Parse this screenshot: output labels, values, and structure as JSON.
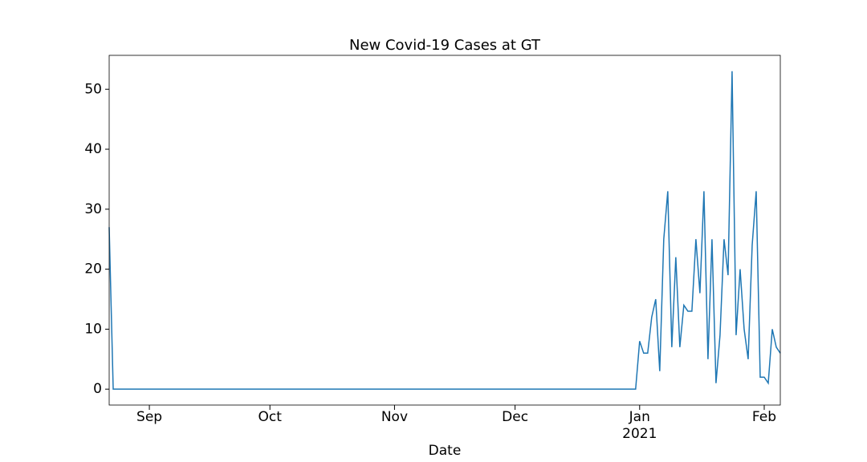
{
  "chart_data": {
    "type": "line",
    "title": "New Covid-19 Cases at GT",
    "xlabel": "Date",
    "year_label": "2021",
    "color": "#1f77b4",
    "x": [
      0,
      1,
      2,
      3,
      4,
      5,
      6,
      7,
      8,
      9,
      10,
      11,
      12,
      13,
      14,
      15,
      16,
      17,
      18,
      19,
      20,
      21,
      22,
      23,
      24,
      25,
      26,
      27,
      28,
      29,
      30,
      31,
      32,
      33,
      34,
      35,
      36,
      37,
      38,
      39,
      40,
      41,
      42,
      43,
      44,
      45,
      46,
      47,
      48,
      49,
      50,
      51,
      52,
      53,
      54,
      55,
      56,
      57,
      58,
      59,
      60,
      61,
      62,
      63,
      64,
      65,
      66,
      67,
      68,
      69,
      70,
      71,
      72,
      73,
      74,
      75,
      76,
      77,
      78,
      79,
      80,
      81,
      82,
      83,
      84,
      85,
      86,
      87,
      88,
      89,
      90,
      91,
      92,
      93,
      94,
      95,
      96,
      97,
      98,
      99,
      100,
      101,
      102,
      103,
      104,
      105,
      106,
      107,
      108,
      109,
      110,
      111,
      112,
      113,
      114,
      115,
      116,
      117,
      118,
      119,
      120,
      121,
      122,
      123,
      124,
      125,
      126,
      127,
      128,
      129,
      130,
      131,
      132,
      133,
      134,
      135,
      136,
      137,
      138,
      139,
      140,
      141,
      142,
      143,
      144,
      145,
      146,
      147,
      148,
      149,
      150,
      151,
      152,
      153,
      154,
      155,
      156,
      157,
      158,
      159,
      160,
      161,
      162,
      163,
      164,
      165,
      166,
      167
    ],
    "values": [
      27,
      0,
      0,
      0,
      0,
      0,
      0,
      0,
      0,
      0,
      0,
      0,
      0,
      0,
      0,
      0,
      0,
      0,
      0,
      0,
      0,
      0,
      0,
      0,
      0,
      0,
      0,
      0,
      0,
      0,
      0,
      0,
      0,
      0,
      0,
      0,
      0,
      0,
      0,
      0,
      0,
      0,
      0,
      0,
      0,
      0,
      0,
      0,
      0,
      0,
      0,
      0,
      0,
      0,
      0,
      0,
      0,
      0,
      0,
      0,
      0,
      0,
      0,
      0,
      0,
      0,
      0,
      0,
      0,
      0,
      0,
      0,
      0,
      0,
      0,
      0,
      0,
      0,
      0,
      0,
      0,
      0,
      0,
      0,
      0,
      0,
      0,
      0,
      0,
      0,
      0,
      0,
      0,
      0,
      0,
      0,
      0,
      0,
      0,
      0,
      0,
      0,
      0,
      0,
      0,
      0,
      0,
      0,
      0,
      0,
      0,
      0,
      0,
      0,
      0,
      0,
      0,
      0,
      0,
      0,
      0,
      0,
      0,
      0,
      0,
      0,
      0,
      0,
      0,
      0,
      0,
      0,
      8,
      6,
      6,
      12,
      15,
      3,
      25,
      33,
      7,
      22,
      7,
      14,
      13,
      13,
      25,
      16,
      33,
      5,
      25,
      1,
      9,
      25,
      19,
      53,
      9,
      20,
      10,
      5,
      24,
      33,
      2,
      2,
      1,
      10,
      7,
      6
    ],
    "xlim": [
      0,
      167
    ],
    "xticks": [
      {
        "value": 10,
        "label": "Sep"
      },
      {
        "value": 40,
        "label": "Oct"
      },
      {
        "value": 71,
        "label": "Nov"
      },
      {
        "value": 101,
        "label": "Dec"
      },
      {
        "value": 132,
        "label": "Jan"
      },
      {
        "value": 163,
        "label": "Feb"
      }
    ],
    "ylim": [
      -2.65,
      55.65
    ],
    "yticks": [
      0,
      10,
      20,
      30,
      40,
      50
    ]
  }
}
